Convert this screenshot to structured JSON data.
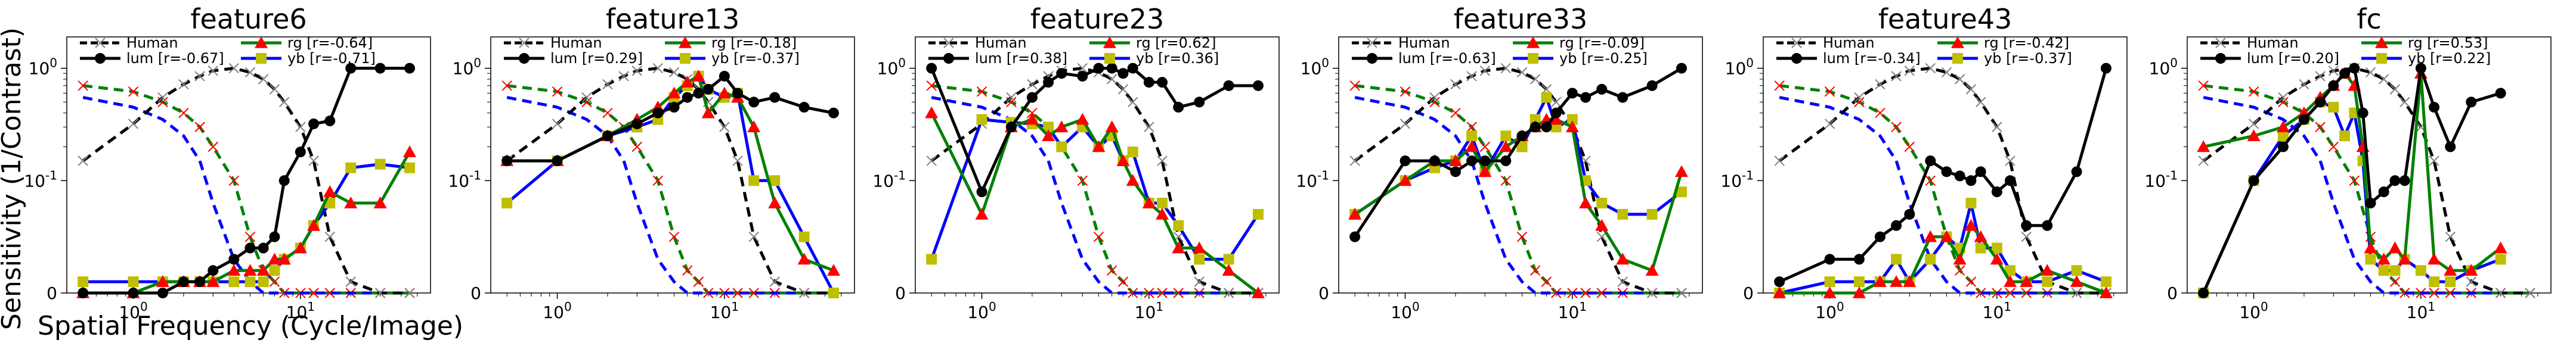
{
  "figure": {
    "ylabel": "Sensitivity (1/Contrast)",
    "xlabel": "Spatial Frequency (Cycle/Image)"
  },
  "legend_prefix": {
    "human": "Human",
    "lum": "lum",
    "rg": "rg",
    "yb": "yb"
  },
  "colors": {
    "human": "#000000",
    "lum": "#000000",
    "rg": "#008000",
    "yb": "#0000ff",
    "human_marker": "#808080",
    "rg_marker": "#ff0000",
    "yb_marker": "#bfbf00",
    "ref_rg": "#008000",
    "ref_yb": "#0000ff",
    "ref_marker": "#ff0000"
  },
  "chart_data": [
    {
      "type": "line",
      "title": "feature6",
      "xscale": "log",
      "yscale": "symlog",
      "xticks": [
        "10^0",
        "10^1"
      ],
      "yticks": [
        "0",
        "10^-1",
        "10^0"
      ],
      "legend": {
        "human": "Human",
        "lum": "lum [r=-0.67]",
        "rg": "rg [r=-0.64]",
        "yb": "yb [r=-0.71]"
      },
      "series": [
        {
          "name": "lum",
          "x": [
            0.5,
            1.0,
            1.5,
            2.0,
            2.5,
            3.0,
            4.0,
            5.0,
            6.0,
            7.0,
            8.0,
            10.0,
            12.0,
            15.0,
            20.0,
            30.0,
            45.0
          ],
          "y": [
            0.0,
            0.0,
            0.0,
            0.01,
            0.01,
            0.02,
            0.03,
            0.04,
            0.04,
            0.05,
            0.1,
            0.18,
            0.32,
            0.34,
            1.0,
            1.0,
            1.0
          ]
        },
        {
          "name": "rg",
          "x": [
            0.5,
            1.0,
            1.5,
            2.0,
            2.5,
            3.0,
            4.0,
            5.0,
            6.0,
            7.0,
            8.0,
            10.0,
            12.0,
            15.0,
            20.0,
            30.0,
            45.0
          ],
          "y": [
            0.0,
            0.0,
            0.01,
            0.01,
            0.01,
            0.01,
            0.02,
            0.02,
            0.02,
            0.03,
            0.03,
            0.04,
            0.06,
            0.09,
            0.08,
            0.08,
            0.18
          ]
        },
        {
          "name": "yb",
          "x": [
            0.5,
            1.0,
            1.5,
            2.0,
            2.5,
            3.0,
            4.0,
            5.0,
            6.0,
            7.0,
            8.0,
            10.0,
            12.0,
            15.0,
            20.0,
            30.0,
            45.0
          ],
          "y": [
            0.01,
            0.01,
            0.01,
            0.01,
            0.01,
            0.01,
            0.01,
            0.01,
            0.01,
            0.02,
            0.03,
            0.04,
            0.06,
            0.08,
            0.13,
            0.14,
            0.13
          ]
        }
      ]
    },
    {
      "type": "line",
      "title": "feature13",
      "xscale": "log",
      "yscale": "symlog",
      "xticks": [
        "10^0",
        "10^1"
      ],
      "yticks": [
        "0",
        "10^-1",
        "10^0"
      ],
      "legend": {
        "human": "Human",
        "lum": "lum [r=0.29]",
        "rg": "rg [r=-0.18]",
        "yb": "yb [r=-0.37]"
      },
      "series": [
        {
          "name": "lum",
          "x": [
            0.5,
            1.0,
            2.0,
            3.0,
            4.0,
            5.0,
            6.0,
            7.0,
            8.0,
            10.0,
            12.0,
            15.0,
            20.0,
            30.0,
            45.0
          ],
          "y": [
            0.15,
            0.15,
            0.25,
            0.32,
            0.4,
            0.45,
            0.55,
            0.6,
            0.65,
            0.85,
            0.6,
            0.5,
            0.55,
            0.45,
            0.4
          ]
        },
        {
          "name": "rg",
          "x": [
            0.5,
            1.0,
            2.0,
            3.0,
            4.0,
            5.0,
            6.0,
            7.0,
            8.0,
            10.0,
            12.0,
            15.0,
            20.0,
            30.0,
            45.0
          ],
          "y": [
            0.15,
            0.15,
            0.25,
            0.35,
            0.45,
            0.6,
            0.75,
            0.85,
            0.4,
            0.6,
            0.55,
            0.3,
            0.08,
            0.03,
            0.02
          ]
        },
        {
          "name": "yb",
          "x": [
            0.5,
            1.0,
            2.0,
            3.0,
            4.0,
            5.0,
            6.0,
            7.0,
            8.0,
            10.0,
            12.0,
            15.0,
            20.0,
            30.0,
            45.0
          ],
          "y": [
            0.08,
            0.15,
            0.25,
            0.3,
            0.35,
            0.55,
            0.7,
            0.85,
            0.65,
            0.55,
            0.6,
            0.1,
            0.1,
            0.05,
            0.0
          ]
        }
      ]
    },
    {
      "type": "line",
      "title": "feature23",
      "xscale": "log",
      "yscale": "symlog",
      "xticks": [
        "10^0",
        "10^1"
      ],
      "yticks": [
        "0",
        "10^-1",
        "10^0"
      ],
      "legend": {
        "human": "Human",
        "lum": "lum [r=0.38]",
        "rg": "rg [r=0.62]",
        "yb": "yb [r=0.36]"
      },
      "series": [
        {
          "name": "lum",
          "x": [
            0.5,
            1.0,
            1.5,
            2.0,
            2.5,
            3.0,
            4.0,
            5.0,
            6.0,
            7.0,
            8.0,
            10.0,
            12.0,
            15.0,
            20.0,
            30.0,
            45.0
          ],
          "y": [
            1.0,
            0.09,
            0.3,
            0.55,
            0.75,
            0.9,
            0.85,
            1.0,
            1.0,
            0.9,
            1.0,
            0.75,
            0.75,
            0.45,
            0.5,
            0.7,
            0.7
          ]
        },
        {
          "name": "rg",
          "x": [
            0.5,
            1.0,
            1.5,
            2.0,
            2.5,
            3.0,
            4.0,
            5.0,
            6.0,
            7.0,
            8.0,
            10.0,
            12.0,
            15.0,
            20.0,
            30.0,
            45.0
          ],
          "y": [
            0.4,
            0.07,
            0.3,
            0.35,
            0.25,
            0.3,
            0.35,
            0.2,
            0.3,
            0.15,
            0.1,
            0.08,
            0.07,
            0.04,
            0.04,
            0.02,
            0.0
          ]
        },
        {
          "name": "yb",
          "x": [
            0.5,
            1.0,
            1.5,
            2.0,
            2.5,
            3.0,
            4.0,
            5.0,
            6.0,
            7.0,
            8.0,
            10.0,
            12.0,
            15.0,
            20.0,
            30.0,
            45.0
          ],
          "y": [
            0.03,
            0.35,
            0.33,
            0.32,
            0.3,
            0.2,
            0.3,
            0.2,
            0.25,
            0.15,
            0.18,
            0.08,
            0.08,
            0.06,
            0.03,
            0.03,
            0.07
          ]
        }
      ]
    },
    {
      "type": "line",
      "title": "feature33",
      "xscale": "log",
      "yscale": "symlog",
      "xticks": [
        "10^0",
        "10^1"
      ],
      "yticks": [
        "0",
        "10^-1",
        "10^0"
      ],
      "legend": {
        "human": "Human",
        "lum": "lum [r=-0.63]",
        "rg": "rg [r=-0.09]",
        "yb": "yb [r=-0.25]"
      },
      "series": [
        {
          "name": "lum",
          "x": [
            0.5,
            1.0,
            1.5,
            2.0,
            2.5,
            3.0,
            4.0,
            5.0,
            6.0,
            7.0,
            8.0,
            10.0,
            12.0,
            15.0,
            20.0,
            30.0,
            45.0
          ],
          "y": [
            0.05,
            0.15,
            0.15,
            0.12,
            0.15,
            0.15,
            0.15,
            0.25,
            0.3,
            0.3,
            0.4,
            0.6,
            0.55,
            0.65,
            0.55,
            0.7,
            1.0
          ]
        },
        {
          "name": "rg",
          "x": [
            0.5,
            1.0,
            1.5,
            2.0,
            2.5,
            3.0,
            4.0,
            5.0,
            6.0,
            7.0,
            8.0,
            10.0,
            12.0,
            15.0,
            20.0,
            30.0,
            45.0
          ],
          "y": [
            0.07,
            0.1,
            0.15,
            0.15,
            0.2,
            0.12,
            0.2,
            0.25,
            0.3,
            0.35,
            0.35,
            0.3,
            0.08,
            0.06,
            0.03,
            0.02,
            0.12
          ]
        },
        {
          "name": "yb",
          "x": [
            0.5,
            1.0,
            1.5,
            2.0,
            2.5,
            3.0,
            4.0,
            5.0,
            6.0,
            7.0,
            8.0,
            10.0,
            12.0,
            15.0,
            20.0,
            30.0,
            45.0
          ],
          "y": [
            0.07,
            0.1,
            0.13,
            0.15,
            0.25,
            0.12,
            0.25,
            0.2,
            0.35,
            0.55,
            0.3,
            0.35,
            0.1,
            0.08,
            0.07,
            0.07,
            0.09
          ]
        }
      ]
    },
    {
      "type": "line",
      "title": "feature43",
      "xscale": "log",
      "yscale": "symlog",
      "xticks": [
        "10^0",
        "10^1"
      ],
      "yticks": [
        "0",
        "10^-1",
        "10^0"
      ],
      "legend": {
        "human": "Human",
        "lum": "lum [r=-0.34]",
        "rg": "rg [r=-0.42]",
        "yb": "yb [r=-0.37]"
      },
      "series": [
        {
          "name": "lum",
          "x": [
            0.5,
            1.0,
            1.5,
            2.0,
            2.5,
            3.0,
            4.0,
            5.0,
            6.0,
            7.0,
            8.0,
            10.0,
            12.0,
            15.0,
            20.0,
            30.0,
            45.0
          ],
          "y": [
            0.01,
            0.03,
            0.03,
            0.05,
            0.06,
            0.07,
            0.15,
            0.12,
            0.11,
            0.1,
            0.12,
            0.09,
            0.1,
            0.06,
            0.06,
            0.12,
            1.0
          ]
        },
        {
          "name": "rg",
          "x": [
            0.5,
            1.0,
            1.5,
            2.0,
            2.5,
            3.0,
            4.0,
            5.0,
            6.0,
            7.0,
            8.0,
            10.0,
            12.0,
            15.0,
            20.0,
            30.0,
            45.0
          ],
          "y": [
            0.0,
            0.0,
            0.0,
            0.01,
            0.01,
            0.01,
            0.05,
            0.05,
            0.03,
            0.06,
            0.05,
            0.03,
            0.01,
            0.01,
            0.02,
            0.01,
            0.0
          ]
        },
        {
          "name": "yb",
          "x": [
            0.5,
            1.0,
            1.5,
            2.0,
            2.5,
            3.0,
            4.0,
            5.0,
            6.0,
            7.0,
            8.0,
            10.0,
            12.0,
            15.0,
            20.0,
            30.0,
            45.0
          ],
          "y": [
            0.0,
            0.01,
            0.01,
            0.01,
            0.03,
            0.01,
            0.03,
            0.05,
            0.04,
            0.08,
            0.04,
            0.04,
            0.02,
            0.01,
            0.01,
            0.02,
            0.01
          ]
        }
      ]
    },
    {
      "type": "line",
      "title": "fc",
      "xscale": "log",
      "yscale": "symlog",
      "xticks": [
        "10^0",
        "10^1"
      ],
      "yticks": [
        "0",
        "10^-1",
        "10^0"
      ],
      "legend": {
        "human": "Human",
        "lum": "lum [r=0.20]",
        "rg": "rg [r=0.53]",
        "yb": "yb [r=0.22]"
      },
      "series": [
        {
          "name": "lum",
          "x": [
            0.5,
            1.0,
            1.5,
            2.0,
            2.5,
            3.0,
            3.5,
            4.0,
            4.5,
            5.0,
            6.0,
            7.0,
            8.0,
            10.0,
            12.0,
            15.0,
            20.0,
            30.0
          ],
          "y": [
            0.0,
            0.1,
            0.2,
            0.35,
            0.5,
            0.7,
            0.9,
            1.0,
            0.4,
            0.08,
            0.09,
            0.1,
            0.1,
            1.0,
            0.45,
            0.2,
            0.5,
            0.6
          ]
        },
        {
          "name": "rg",
          "x": [
            0.5,
            1.0,
            1.5,
            2.0,
            2.5,
            3.0,
            3.5,
            4.0,
            4.5,
            5.0,
            6.0,
            7.0,
            8.0,
            10.0,
            12.0,
            15.0,
            20.0,
            30.0
          ],
          "y": [
            0.2,
            0.25,
            0.3,
            0.4,
            0.55,
            0.7,
            0.9,
            0.7,
            0.2,
            0.04,
            0.03,
            0.04,
            0.03,
            0.9,
            0.03,
            0.02,
            0.02,
            0.04
          ]
        },
        {
          "name": "yb",
          "x": [
            0.5,
            1.0,
            1.5,
            2.0,
            2.5,
            3.0,
            3.5,
            4.0,
            4.5,
            5.0,
            6.0,
            7.0,
            8.0,
            10.0,
            12.0,
            15.0,
            20.0,
            30.0
          ],
          "y": [
            0.0,
            0.1,
            0.25,
            0.35,
            0.5,
            0.45,
            0.25,
            0.4,
            0.15,
            0.03,
            0.02,
            0.02,
            0.03,
            0.02,
            0.01,
            0.01,
            0.02,
            0.03
          ]
        }
      ]
    }
  ],
  "reference_curves": {
    "human": {
      "x": [
        0.5,
        1.0,
        1.5,
        2.0,
        2.5,
        3.0,
        4.0,
        5.0,
        6.0,
        7.0,
        8.0,
        10.0,
        12.0,
        15.0,
        20.0,
        30.0,
        45.0
      ],
      "y": [
        0.15,
        0.32,
        0.55,
        0.72,
        0.85,
        0.95,
        1.0,
        0.92,
        0.8,
        0.65,
        0.5,
        0.3,
        0.15,
        0.05,
        0.01,
        0.0,
        0.0
      ]
    },
    "rg_ref": {
      "x": [
        0.5,
        1.0,
        1.5,
        2.0,
        2.5,
        3.0,
        4.0,
        5.0,
        6.0,
        7.0,
        8.0,
        10.0,
        12.0,
        15.0,
        20.0,
        30.0,
        45.0
      ],
      "y": [
        0.7,
        0.62,
        0.5,
        0.4,
        0.3,
        0.2,
        0.1,
        0.05,
        0.02,
        0.01,
        0.0,
        0.0,
        0.0,
        0.0,
        0.0,
        0.0,
        0.0
      ]
    },
    "yb_ref": {
      "x": [
        0.5,
        1.0,
        1.5,
        2.0,
        2.5,
        3.0,
        4.0,
        5.0,
        6.0,
        7.0,
        8.0,
        10.0,
        12.0,
        15.0,
        20.0,
        30.0,
        45.0
      ],
      "y": [
        0.55,
        0.45,
        0.35,
        0.25,
        0.15,
        0.08,
        0.03,
        0.01,
        0.0,
        0.0,
        0.0,
        0.0,
        0.0,
        0.0,
        0.0,
        0.0,
        0.0
      ]
    }
  }
}
